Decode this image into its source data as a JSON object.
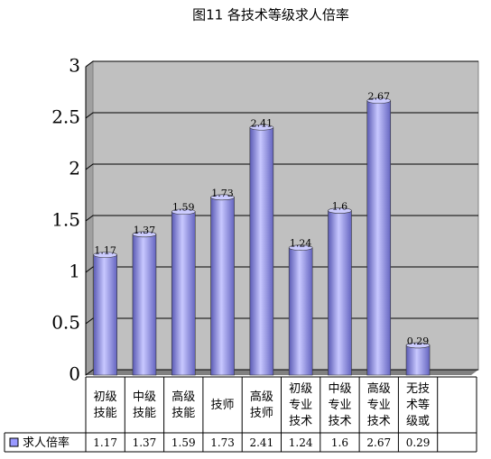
{
  "chart_data": {
    "type": "bar",
    "title": "图11 各技术等级求人倍率",
    "categories": [
      "初级技能",
      "中级技能",
      "高级技能",
      "技师",
      "高级技师",
      "初级专业技术",
      "中级专业技术",
      "高级专业技术",
      "无技术等级或"
    ],
    "series": [
      {
        "name": "求人倍率",
        "color": "#9999ff",
        "values": [
          1.17,
          1.37,
          1.59,
          1.73,
          2.41,
          1.24,
          1.6,
          2.67,
          0.29
        ]
      }
    ],
    "ylim": [
      0,
      3
    ],
    "yticks": [
      0,
      0.5,
      1,
      1.5,
      2,
      2.5,
      3
    ],
    "grid": true
  }
}
